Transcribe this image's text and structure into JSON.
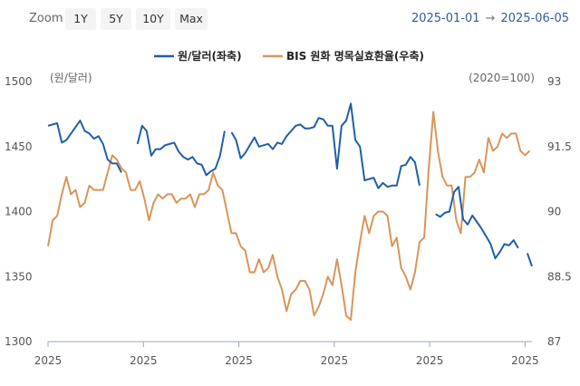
{
  "toolbar": {
    "zoom_label": "Zoom",
    "zoom_options": [
      "1Y",
      "5Y",
      "10Y",
      "Max"
    ],
    "range_start": "2025-01-01",
    "range_arrow": "→",
    "range_end": "2025-06-05"
  },
  "colors": {
    "usdkrw": "#1f5fa8",
    "reer": "#d9955a"
  },
  "chart_data": {
    "type": "line",
    "legend_position": "top-center",
    "grid": false,
    "x_tick_labels": [
      "2025",
      "2025",
      "2025",
      "2025",
      "2025",
      "2025"
    ],
    "left_axis": {
      "unit_label": "(원/달러)",
      "ticks": [
        "1500",
        "1450",
        "1400",
        "1350",
        "1300"
      ],
      "ylim": [
        1300,
        1500
      ]
    },
    "right_axis": {
      "unit_label": "(2020=100)",
      "ticks": [
        "93",
        "91.5",
        "90",
        "88.5",
        "87"
      ],
      "ylim": [
        87,
        93
      ]
    },
    "series": [
      {
        "name": "원/달러(좌축)",
        "axis": "left",
        "segments": [
          [
            [
              0,
              1466
            ],
            [
              2,
              1467
            ],
            [
              4,
              1468
            ],
            [
              6,
              1453
            ],
            [
              8,
              1455
            ],
            [
              10,
              1460
            ],
            [
              12,
              1465
            ],
            [
              14,
              1470
            ],
            [
              16,
              1462
            ],
            [
              18,
              1460
            ],
            [
              20,
              1456
            ],
            [
              22,
              1458
            ],
            [
              24,
              1452
            ],
            [
              26,
              1440
            ],
            [
              28,
              1437
            ],
            [
              30,
              1437
            ],
            [
              32,
              1430
            ]
          ],
          [
            [
              39,
              1452
            ],
            [
              41,
              1466
            ],
            [
              43,
              1462
            ],
            [
              45,
              1443
            ],
            [
              47,
              1448
            ],
            [
              49,
              1448
            ],
            [
              51,
              1451
            ],
            [
              53,
              1452
            ],
            [
              55,
              1453
            ],
            [
              57,
              1446
            ],
            [
              59,
              1442
            ],
            [
              61,
              1440
            ],
            [
              63,
              1442
            ],
            [
              65,
              1437
            ],
            [
              67,
              1436
            ],
            [
              69,
              1428
            ],
            [
              71,
              1431
            ],
            [
              73,
              1433
            ],
            [
              75,
              1443
            ],
            [
              77,
              1462
            ]
          ],
          [
            [
              80,
              1461
            ],
            [
              82,
              1455
            ],
            [
              84,
              1441
            ],
            [
              86,
              1445
            ],
            [
              88,
              1451
            ],
            [
              90,
              1457
            ],
            [
              92,
              1450
            ],
            [
              94,
              1451
            ],
            [
              96,
              1452
            ],
            [
              98,
              1448
            ],
            [
              100,
              1453
            ],
            [
              102,
              1452
            ],
            [
              104,
              1458
            ],
            [
              106,
              1462
            ],
            [
              108,
              1466
            ],
            [
              110,
              1467
            ],
            [
              112,
              1464
            ],
            [
              114,
              1464
            ],
            [
              116,
              1465
            ],
            [
              118,
              1472
            ],
            [
              120,
              1471
            ],
            [
              122,
              1466
            ],
            [
              124,
              1466
            ],
            [
              126,
              1433
            ],
            [
              128,
              1466
            ],
            [
              130,
              1470
            ],
            [
              132,
              1483
            ],
            [
              134,
              1455
            ],
            [
              136,
              1450
            ],
            [
              138,
              1424
            ],
            [
              140,
              1425
            ],
            [
              142,
              1426
            ],
            [
              144,
              1418
            ],
            [
              146,
              1422
            ],
            [
              148,
              1419
            ],
            [
              150,
              1420
            ],
            [
              152,
              1420
            ],
            [
              154,
              1435
            ],
            [
              156,
              1436
            ],
            [
              158,
              1442
            ],
            [
              160,
              1438
            ],
            [
              162,
              1420
            ]
          ],
          [
            [
              169,
              1398
            ],
            [
              171,
              1396
            ],
            [
              173,
              1399
            ],
            [
              175,
              1400
            ],
            [
              177,
              1415
            ],
            [
              179,
              1419
            ],
            [
              181,
              1394
            ],
            [
              183,
              1390
            ],
            [
              185,
              1397
            ],
            [
              187,
              1392
            ],
            [
              189,
              1387
            ],
            [
              191,
              1381
            ],
            [
              193,
              1375
            ],
            [
              195,
              1364
            ],
            [
              197,
              1369
            ],
            [
              199,
              1375
            ],
            [
              201,
              1374
            ],
            [
              203,
              1378
            ],
            [
              205,
              1372
            ]
          ],
          [
            [
              209,
              1368
            ],
            [
              211,
              1358
            ]
          ]
        ]
      },
      {
        "name": "BIS 원화 명목실효환율(우축)",
        "axis": "right",
        "points": [
          [
            0,
            89.2
          ],
          [
            2,
            89.8
          ],
          [
            4,
            89.9
          ],
          [
            6,
            90.4
          ],
          [
            8,
            90.8
          ],
          [
            10,
            90.4
          ],
          [
            12,
            90.5
          ],
          [
            14,
            90.1
          ],
          [
            16,
            90.2
          ],
          [
            18,
            90.6
          ],
          [
            20,
            90.5
          ],
          [
            22,
            90.5
          ],
          [
            24,
            90.5
          ],
          [
            26,
            90.9
          ],
          [
            28,
            91.3
          ],
          [
            30,
            91.2
          ],
          [
            32,
            91.0
          ],
          [
            34,
            90.9
          ],
          [
            36,
            90.5
          ],
          [
            38,
            90.5
          ],
          [
            40,
            90.7
          ],
          [
            42,
            90.3
          ],
          [
            44,
            89.8
          ],
          [
            46,
            90.2
          ],
          [
            48,
            90.4
          ],
          [
            50,
            90.3
          ],
          [
            52,
            90.4
          ],
          [
            54,
            90.4
          ],
          [
            56,
            90.2
          ],
          [
            58,
            90.3
          ],
          [
            60,
            90.3
          ],
          [
            62,
            90.4
          ],
          [
            64,
            90.1
          ],
          [
            66,
            90.4
          ],
          [
            68,
            90.4
          ],
          [
            70,
            90.5
          ],
          [
            72,
            90.9
          ],
          [
            74,
            90.6
          ],
          [
            76,
            90.5
          ],
          [
            78,
            90.0
          ],
          [
            80,
            89.5
          ],
          [
            82,
            89.5
          ],
          [
            84,
            89.2
          ],
          [
            86,
            89.1
          ],
          [
            88,
            88.6
          ],
          [
            90,
            88.6
          ],
          [
            92,
            88.9
          ],
          [
            94,
            88.6
          ],
          [
            96,
            88.7
          ],
          [
            98,
            89.0
          ],
          [
            100,
            88.5
          ],
          [
            102,
            88.2
          ],
          [
            104,
            87.7
          ],
          [
            106,
            88.1
          ],
          [
            108,
            88.2
          ],
          [
            110,
            88.4
          ],
          [
            112,
            88.4
          ],
          [
            114,
            88.2
          ],
          [
            116,
            87.6
          ],
          [
            118,
            87.8
          ],
          [
            120,
            88.1
          ],
          [
            122,
            88.5
          ],
          [
            124,
            88.3
          ],
          [
            126,
            88.9
          ],
          [
            128,
            88.3
          ],
          [
            130,
            87.6
          ],
          [
            132,
            87.5
          ],
          [
            134,
            88.6
          ],
          [
            136,
            89.3
          ],
          [
            138,
            89.9
          ],
          [
            140,
            89.5
          ],
          [
            142,
            89.9
          ],
          [
            144,
            90.0
          ],
          [
            146,
            90.0
          ],
          [
            148,
            89.9
          ],
          [
            150,
            89.2
          ],
          [
            152,
            89.4
          ],
          [
            154,
            88.7
          ],
          [
            156,
            88.5
          ],
          [
            158,
            88.2
          ],
          [
            160,
            88.6
          ],
          [
            162,
            89.3
          ],
          [
            164,
            89.4
          ],
          [
            166,
            91.0
          ],
          [
            168,
            92.3
          ],
          [
            170,
            91.4
          ],
          [
            172,
            90.8
          ],
          [
            174,
            90.6
          ],
          [
            176,
            90.6
          ],
          [
            178,
            89.8
          ],
          [
            180,
            89.5
          ],
          [
            182,
            90.8
          ],
          [
            184,
            90.8
          ],
          [
            186,
            90.9
          ],
          [
            188,
            91.2
          ],
          [
            190,
            90.9
          ],
          [
            192,
            91.7
          ],
          [
            194,
            91.4
          ],
          [
            196,
            91.5
          ],
          [
            198,
            91.8
          ],
          [
            200,
            91.7
          ],
          [
            202,
            91.8
          ],
          [
            204,
            91.8
          ],
          [
            206,
            91.4
          ],
          [
            208,
            91.3
          ],
          [
            210,
            91.4
          ]
        ]
      }
    ]
  }
}
